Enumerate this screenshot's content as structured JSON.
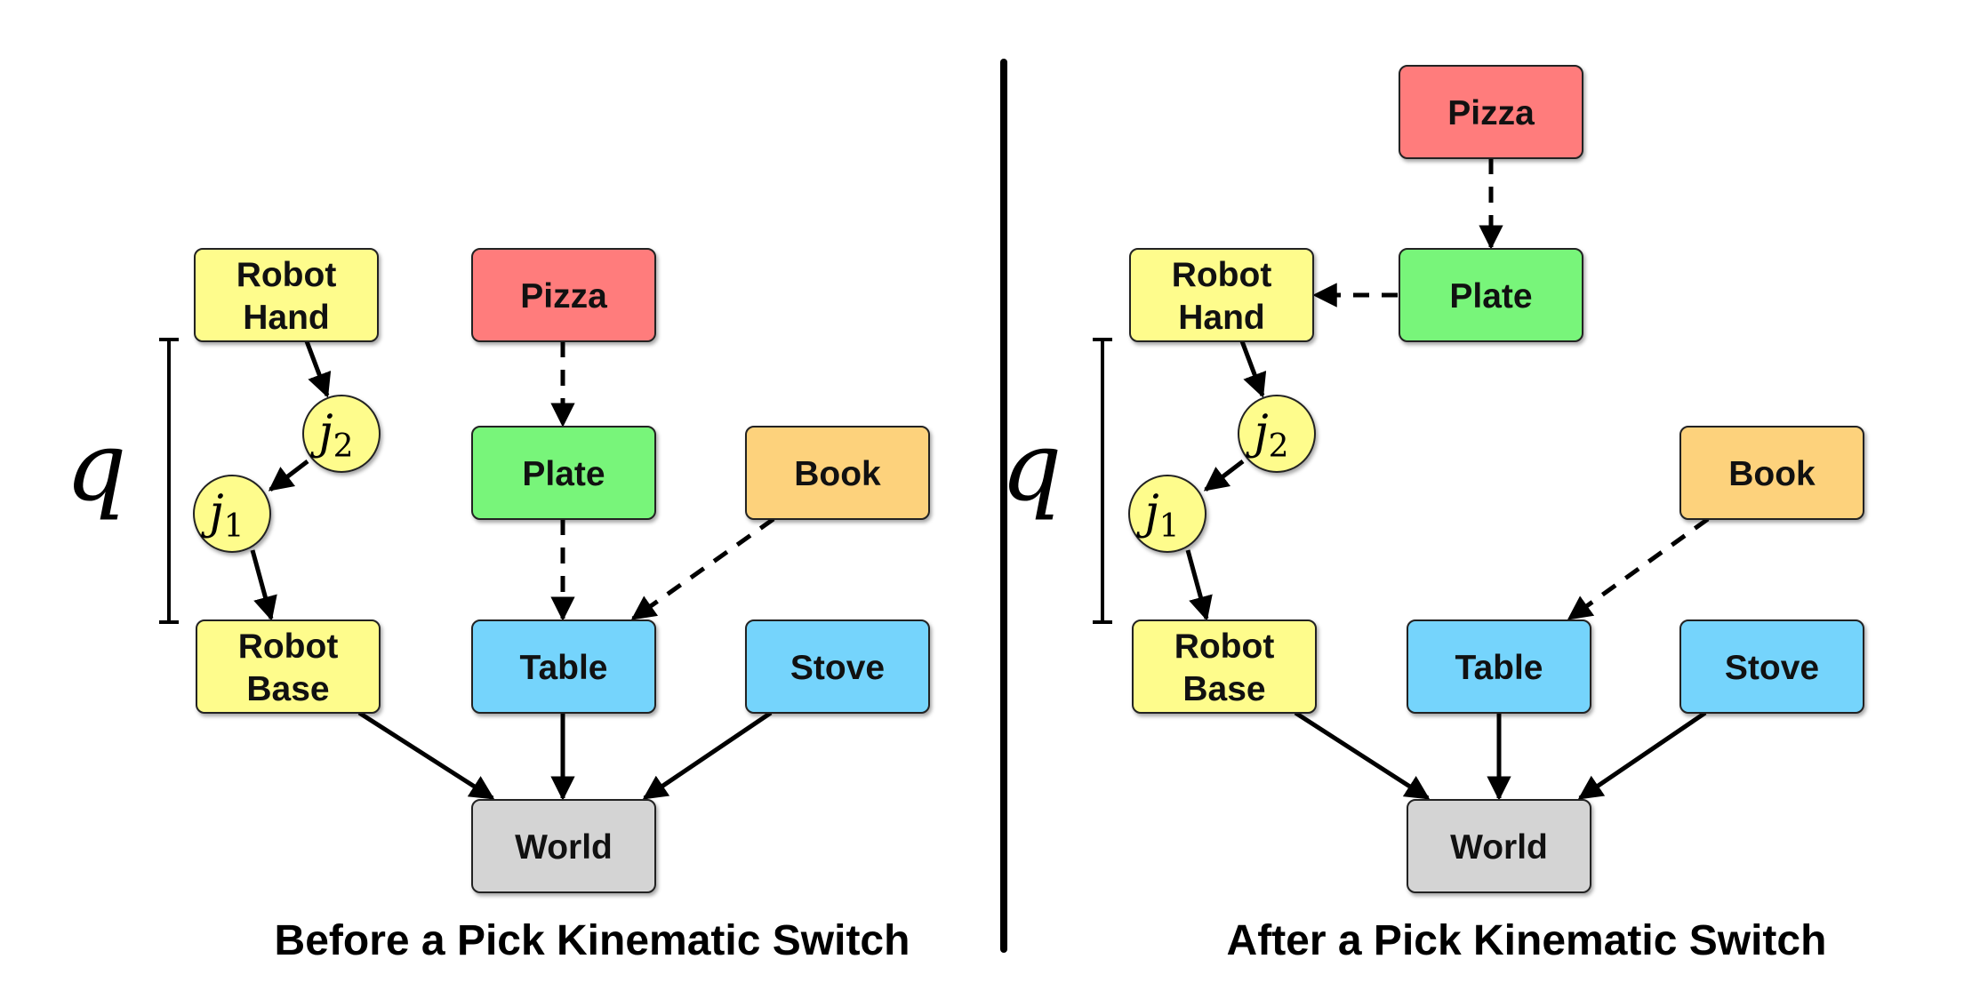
{
  "colors": {
    "object": "#ff7b7b",
    "container": "#78f57a",
    "robot": "#fefc8c",
    "fixture": "#75d4fc",
    "movable": "#fdd27c",
    "world": "#d4d4d4",
    "joint": "#fefc8c",
    "edge": "#000000"
  },
  "panels": [
    {
      "caption": "Before a Pick Kinematic Switch",
      "q_label": "q",
      "nodes": {
        "robot_hand": [
          "Robot",
          "Hand"
        ],
        "pizza": [
          "Pizza"
        ],
        "plate": [
          "Plate"
        ],
        "book": [
          "Book"
        ],
        "robot_base": [
          "Robot",
          "Base"
        ],
        "table": [
          "Table"
        ],
        "stove": [
          "Stove"
        ],
        "world": [
          "World"
        ]
      },
      "joints": {
        "j1": {
          "base": "j",
          "sub": "1"
        },
        "j2": {
          "base": "j",
          "sub": "2"
        }
      }
    },
    {
      "caption": "After a Pick Kinematic Switch",
      "q_label": "q",
      "nodes": {
        "pizza": [
          "Pizza"
        ],
        "robot_hand": [
          "Robot",
          "Hand"
        ],
        "plate": [
          "Plate"
        ],
        "book": [
          "Book"
        ],
        "robot_base": [
          "Robot",
          "Base"
        ],
        "table": [
          "Table"
        ],
        "stove": [
          "Stove"
        ],
        "world": [
          "World"
        ]
      },
      "joints": {
        "j1": {
          "base": "j",
          "sub": "1"
        },
        "j2": {
          "base": "j",
          "sub": "2"
        }
      }
    }
  ]
}
